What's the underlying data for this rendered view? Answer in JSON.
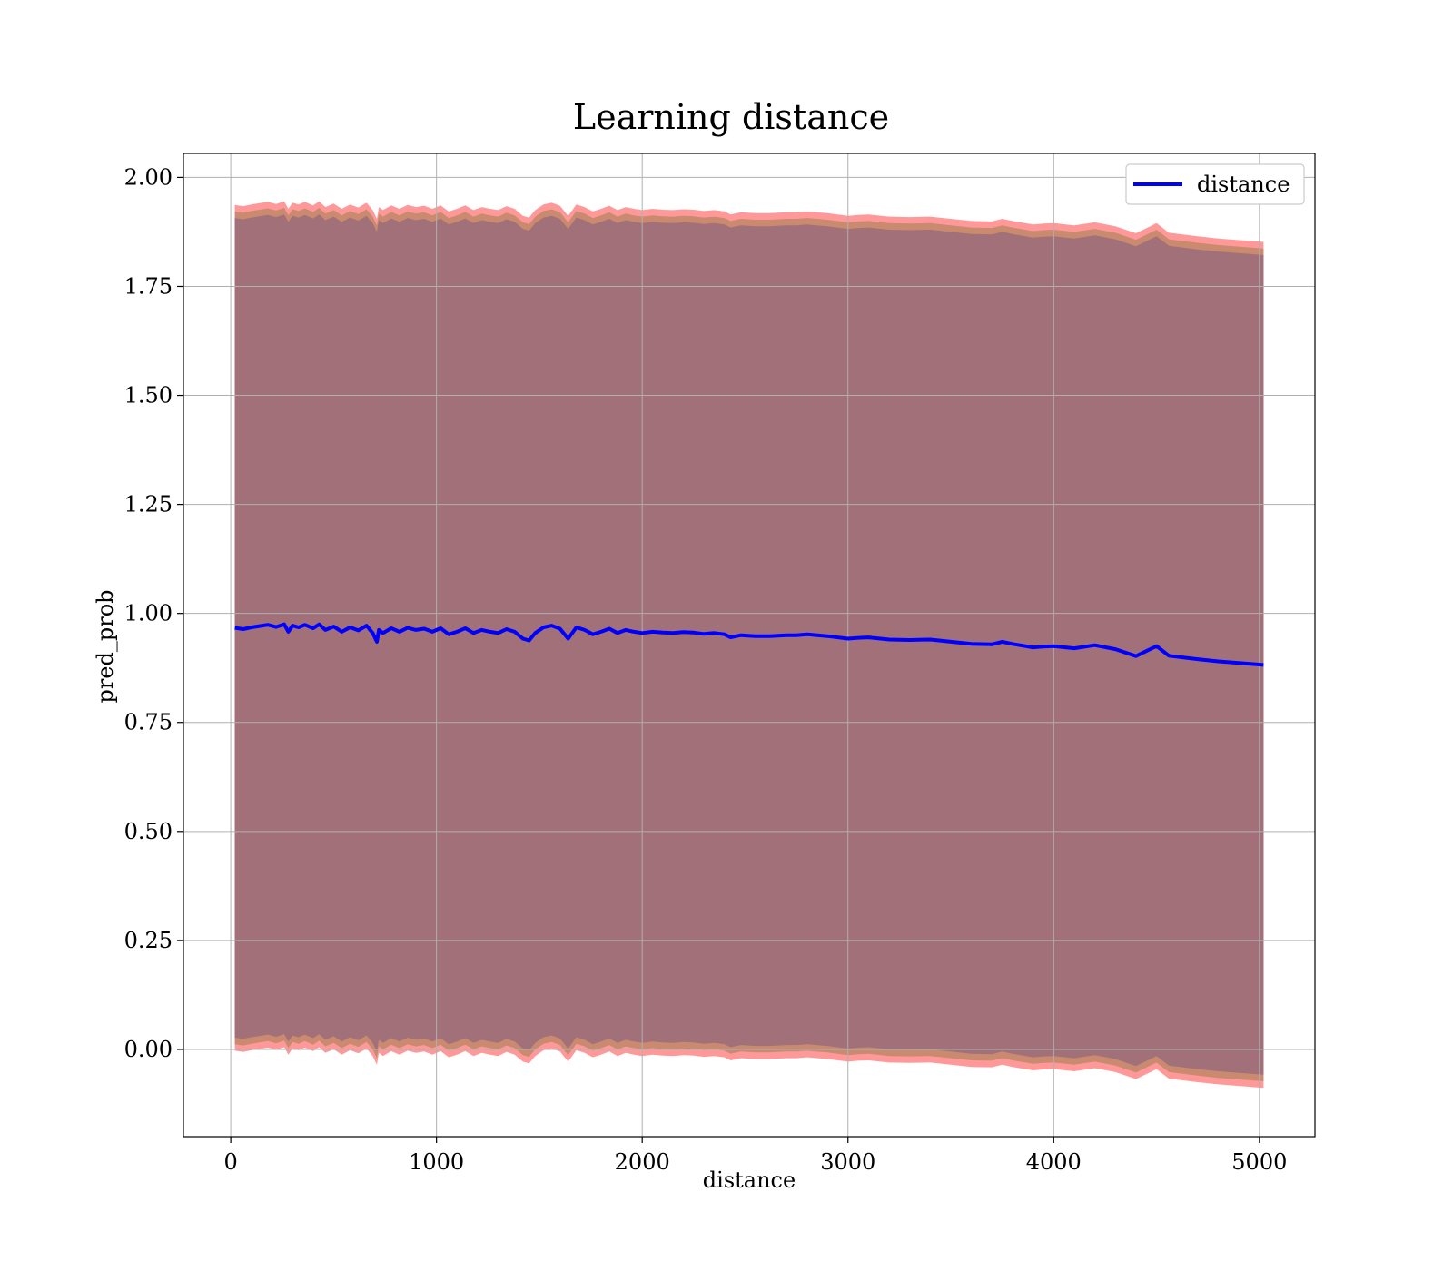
{
  "chart_data": {
    "type": "line",
    "title": "Learning distance",
    "xlabel": "distance",
    "ylabel": "pred_prob",
    "xlim": [
      -230,
      5270
    ],
    "ylim": [
      -0.2,
      2.055
    ],
    "grid": true,
    "legend_position": "top-right",
    "x_ticks": [
      0,
      1000,
      2000,
      3000,
      4000,
      5000
    ],
    "x_tick_labels": [
      "0",
      "1000",
      "2000",
      "3000",
      "4000",
      "5000"
    ],
    "y_ticks": [
      0.0,
      0.25,
      0.5,
      0.75,
      1.0,
      1.25,
      1.5,
      1.75,
      2.0
    ],
    "y_tick_labels": [
      "0.00",
      "0.25",
      "0.50",
      "0.75",
      "1.00",
      "1.25",
      "1.50",
      "1.75",
      "2.00"
    ],
    "series": [
      {
        "name": "distance",
        "color": "#0000ff",
        "x": [
          20,
          60,
          100,
          140,
          180,
          220,
          260,
          280,
          300,
          330,
          360,
          400,
          430,
          460,
          500,
          540,
          580,
          620,
          660,
          690,
          710,
          720,
          740,
          780,
          820,
          860,
          900,
          940,
          980,
          1020,
          1060,
          1100,
          1140,
          1180,
          1220,
          1260,
          1300,
          1340,
          1380,
          1420,
          1450,
          1480,
          1520,
          1560,
          1600,
          1640,
          1680,
          1720,
          1760,
          1800,
          1840,
          1880,
          1920,
          1960,
          2000,
          2050,
          2100,
          2150,
          2200,
          2250,
          2300,
          2350,
          2400,
          2430,
          2480,
          2550,
          2620,
          2700,
          2750,
          2800,
          2900,
          3000,
          3050,
          3100,
          3200,
          3300,
          3400,
          3500,
          3600,
          3700,
          3750,
          3800,
          3900,
          3950,
          4000,
          4100,
          4200,
          4300,
          4400,
          4500,
          4560,
          4700,
          4800,
          5020
        ],
        "y": [
          0.967,
          0.964,
          0.968,
          0.971,
          0.974,
          0.969,
          0.975,
          0.958,
          0.972,
          0.968,
          0.974,
          0.966,
          0.975,
          0.962,
          0.97,
          0.958,
          0.968,
          0.961,
          0.972,
          0.955,
          0.935,
          0.962,
          0.955,
          0.966,
          0.958,
          0.967,
          0.962,
          0.965,
          0.958,
          0.966,
          0.952,
          0.958,
          0.966,
          0.955,
          0.962,
          0.958,
          0.955,
          0.964,
          0.958,
          0.942,
          0.938,
          0.955,
          0.968,
          0.972,
          0.965,
          0.942,
          0.968,
          0.962,
          0.952,
          0.958,
          0.965,
          0.955,
          0.962,
          0.958,
          0.955,
          0.958,
          0.956,
          0.955,
          0.957,
          0.956,
          0.953,
          0.955,
          0.952,
          0.945,
          0.95,
          0.948,
          0.948,
          0.95,
          0.95,
          0.952,
          0.948,
          0.942,
          0.944,
          0.945,
          0.94,
          0.939,
          0.94,
          0.935,
          0.93,
          0.929,
          0.935,
          0.93,
          0.922,
          0.924,
          0.925,
          0.92,
          0.927,
          0.918,
          0.902,
          0.925,
          0.903,
          0.895,
          0.89,
          0.882
        ]
      }
    ],
    "band_outer_color": "#ff9999",
    "band_mid_color": "#c98a70",
    "band_inner_color": "#a17079",
    "band_offsets_outer": 0.97,
    "band_offsets_mid": 0.955,
    "band_offsets_inner": 0.94
  }
}
